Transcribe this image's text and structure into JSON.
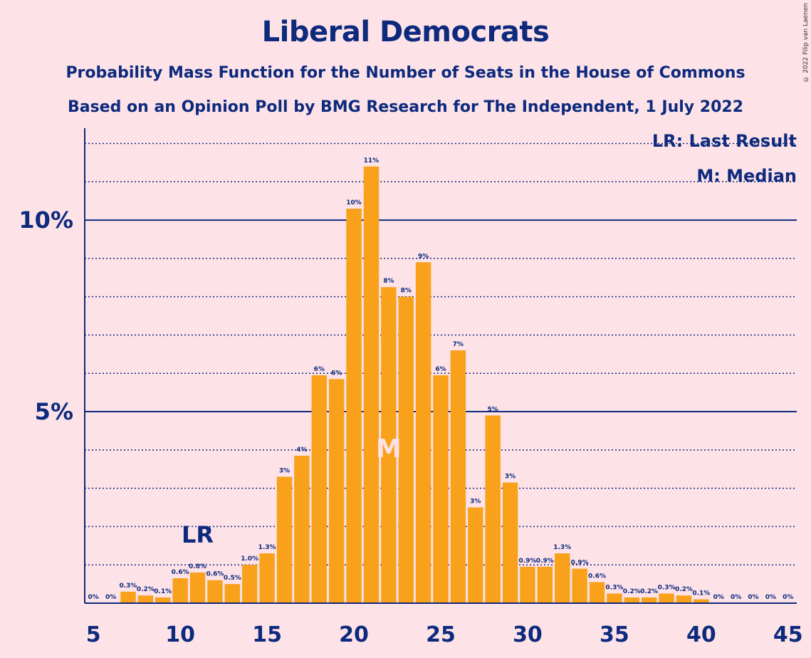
{
  "chart_data": {
    "type": "bar",
    "title": "Liberal Democrats",
    "subtitle_1": "Probability Mass Function for the Number of Seats in the House of Commons",
    "subtitle_2": "Based on an Opinion Poll by BMG Research for The Independent, 1 July 2022",
    "copyright": "© 2022 Filip van Laenen",
    "legend": {
      "lr": "LR: Last Result",
      "median": "M: Median"
    },
    "x": [
      5,
      6,
      7,
      8,
      9,
      10,
      11,
      12,
      13,
      14,
      15,
      16,
      17,
      18,
      19,
      20,
      21,
      22,
      23,
      24,
      25,
      26,
      27,
      28,
      29,
      30,
      31,
      32,
      33,
      34,
      35,
      36,
      37,
      38,
      39,
      40,
      41,
      42,
      43,
      44,
      45
    ],
    "values": [
      0,
      0,
      0.3,
      0.2,
      0.15,
      0.65,
      0.8,
      0.6,
      0.5,
      1.0,
      1.3,
      3.3,
      3.85,
      5.95,
      5.85,
      10.3,
      11.4,
      8.25,
      8.0,
      8.9,
      5.95,
      6.6,
      2.5,
      4.9,
      3.15,
      0.95,
      0.95,
      1.3,
      0.9,
      0.55,
      0.25,
      0.15,
      0.15,
      0.25,
      0.2,
      0.1,
      0,
      0,
      0,
      0,
      0
    ],
    "labels": [
      "0%",
      "0%",
      "0.3%",
      "0.2%",
      "0.1%",
      "0.6%",
      "0.8%",
      "0.6%",
      "0.5%",
      "1.0%",
      "1.3%",
      "3%",
      "4%",
      "6%",
      "6%",
      "10%",
      "11%",
      "8%",
      "8%",
      "9%",
      "6%",
      "7%",
      "3%",
      "5%",
      "3%",
      "0.9%",
      "0.9%",
      "1.3%",
      "0.9%",
      "0.6%",
      "0.3%",
      "0.2%",
      "0.2%",
      "0.3%",
      "0.2%",
      "0.1%",
      "0%",
      "0%",
      "0%",
      "0%",
      "0%"
    ],
    "x_ticks": [
      5,
      10,
      15,
      20,
      25,
      30,
      35,
      40,
      45
    ],
    "y_ticks": [
      {
        "value": 5,
        "label": "5%"
      },
      {
        "value": 10,
        "label": "10%"
      }
    ],
    "ylim": [
      0,
      12.4
    ],
    "xlim": [
      4.5,
      45.5
    ],
    "last_result": {
      "seat": 11,
      "marker": "LR"
    },
    "median": {
      "seat": 22,
      "marker": "M"
    },
    "bar_color": "#f9a11b",
    "text_color": "#0d2a7d",
    "background": "#fde3e8",
    "grid": "dotted every 1%, solid at 5% and 10%"
  }
}
